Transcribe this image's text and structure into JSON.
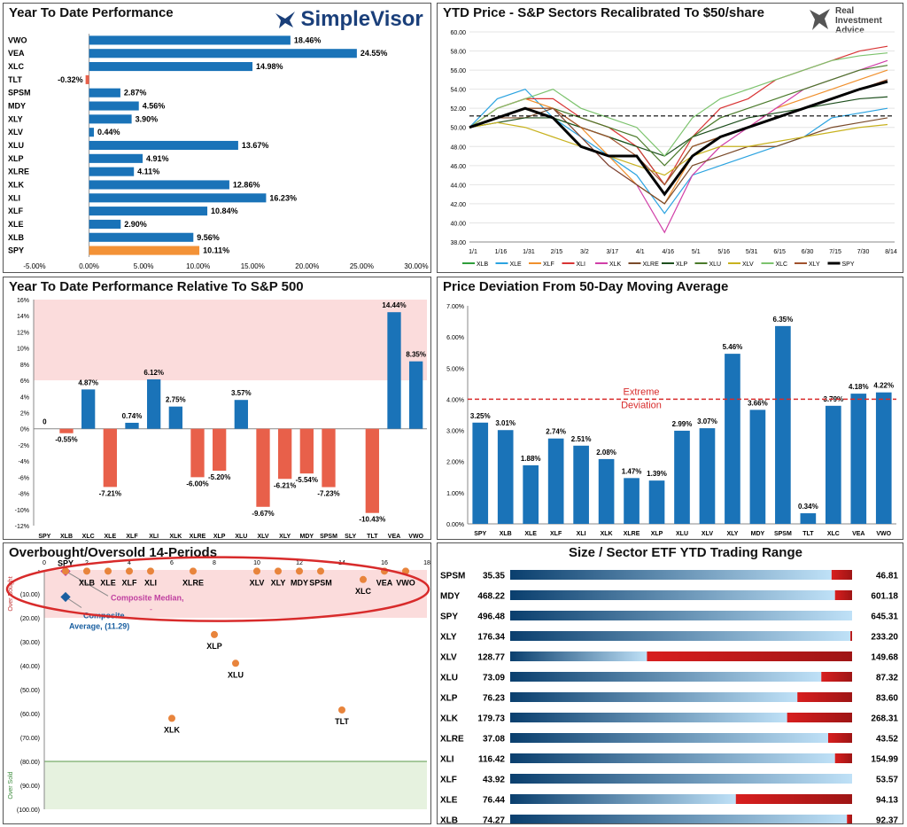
{
  "panels": {
    "ytd": {
      "title": "Year To Date Performance",
      "logo": "SimpleVisor",
      "chart_data": {
        "type": "bar",
        "orientation": "horizontal",
        "categories": [
          "VWO",
          "VEA",
          "XLC",
          "TLT",
          "SPSM",
          "MDY",
          "XLY",
          "XLV",
          "XLU",
          "XLP",
          "XLRE",
          "XLK",
          "XLI",
          "XLF",
          "XLE",
          "XLB",
          "SPY"
        ],
        "values": [
          18.46,
          24.55,
          14.98,
          -0.32,
          2.87,
          4.56,
          3.9,
          0.44,
          13.67,
          4.91,
          4.11,
          12.86,
          16.23,
          10.84,
          2.9,
          9.56,
          10.11
        ],
        "labels": [
          "18.46%",
          "24.55%",
          "14.98%",
          "-0.32%",
          "2.87%",
          "4.56%",
          "3.90%",
          "0.44%",
          "13.67%",
          "4.91%",
          "4.11%",
          "12.86%",
          "16.23%",
          "10.84%",
          "2.90%",
          "9.56%",
          "10.11%"
        ],
        "xticks": [
          "-5.00%",
          "0.00%",
          "5.00%",
          "10.00%",
          "15.00%",
          "20.00%",
          "25.00%",
          "30.00%"
        ],
        "xlim": [
          -5,
          30
        ],
        "colors": {
          "positive": "#1a73b8",
          "negative": "#e8604a",
          "highlight": "#f39237"
        },
        "highlight": "SPY"
      }
    },
    "price": {
      "title": "YTD Price - S&P Sectors Recalibrated To $50/share",
      "logo_line1": "Real",
      "logo_line2": "Investment",
      "logo_line3": "Advice",
      "chart_data": {
        "type": "line",
        "x": [
          "1/1",
          "1/16",
          "1/31",
          "2/15",
          "3/2",
          "3/17",
          "4/1",
          "4/16",
          "5/1",
          "5/16",
          "5/31",
          "6/15",
          "6/30",
          "7/15",
          "7/30",
          "8/14"
        ],
        "ylim": [
          38,
          60
        ],
        "yticks": [
          "38.00",
          "40.00",
          "42.00",
          "44.00",
          "46.00",
          "48.00",
          "50.00",
          "52.00",
          "54.00",
          "56.00",
          "58.00",
          "60.00"
        ],
        "reference_line": 51.2,
        "series": [
          {
            "name": "XLB",
            "color": "#2e9e3a",
            "values": [
              50,
              51,
              52,
              51,
              50,
              49,
              48,
              44,
              48,
              49,
              50,
              51,
              52,
              53,
              54,
              54.8
            ]
          },
          {
            "name": "XLE",
            "color": "#2ba3e0",
            "values": [
              50,
              53,
              54,
              51,
              49,
              47,
              45,
              41,
              45,
              46,
              47,
              48,
              49,
              51,
              51.5,
              52
            ]
          },
          {
            "name": "XLF",
            "color": "#f0902d",
            "values": [
              50,
              52,
              53,
              52,
              50,
              47,
              44,
              42,
              47,
              49,
              50,
              52,
              53,
              54,
              55,
              56
            ]
          },
          {
            "name": "XLI",
            "color": "#d83434",
            "values": [
              50,
              52,
              53,
              53,
              51,
              50,
              48,
              44,
              49,
              52,
              53,
              55,
              56,
              57,
              58,
              58.5
            ]
          },
          {
            "name": "XLK",
            "color": "#d13fa8",
            "values": [
              50,
              51,
              52,
              52,
              49,
              46,
              44,
              39,
              45,
              48,
              50,
              52,
              54,
              55,
              56,
              57
            ]
          },
          {
            "name": "XLRE",
            "color": "#7a4a2a",
            "values": [
              50,
              51,
              51,
              52,
              49,
              46,
              44,
              42,
              46,
              47,
              48,
              48,
              49,
              50,
              50.5,
              51
            ]
          },
          {
            "name": "XLP",
            "color": "#1d4f1d",
            "values": [
              50,
              50.5,
              51,
              51,
              50,
              49,
              48,
              47,
              49,
              50,
              51,
              51.5,
              52,
              52.5,
              53,
              53.2
            ]
          },
          {
            "name": "XLU",
            "color": "#4a7a2a",
            "values": [
              50,
              51,
              52,
              52,
              51,
              50,
              49,
              46,
              49,
              51,
              52,
              53,
              54,
              55,
              56,
              56.5
            ]
          },
          {
            "name": "XLV",
            "color": "#c8b21f",
            "values": [
              50,
              50.5,
              50,
              49,
              48,
              47,
              46,
              45,
              47,
              48,
              48,
              48.5,
              49,
              49.5,
              50,
              50.3
            ]
          },
          {
            "name": "XLC",
            "color": "#7cc36d",
            "values": [
              50,
              52,
              53,
              54,
              52,
              51,
              50,
              47,
              51,
              53,
              54,
              55,
              56,
              57,
              57.5,
              57.8
            ]
          },
          {
            "name": "XLY",
            "color": "#a0522d",
            "values": [
              50,
              51,
              52,
              52,
              50,
              49,
              47,
              44,
              48,
              49,
              50,
              51,
              52,
              53,
              54,
              55
            ]
          },
          {
            "name": "SPY",
            "color": "#000000",
            "bold": true,
            "values": [
              50,
              51,
              52,
              51,
              48,
              47,
              47,
              43,
              47,
              49,
              50,
              51,
              52,
              53,
              54,
              54.8
            ]
          }
        ]
      }
    },
    "rel": {
      "title": "Year To Date Performance Relative To S&P 500",
      "chart_data": {
        "type": "bar",
        "categories": [
          "SPY",
          "XLB",
          "XLC",
          "XLE",
          "XLF",
          "XLI",
          "XLK",
          "XLRE",
          "XLP",
          "XLU",
          "XLV",
          "XLY",
          "MDY",
          "SPSM",
          "SLY",
          "TLT",
          "VEA",
          "VWO"
        ],
        "values": [
          0,
          -0.55,
          4.87,
          -7.21,
          0.74,
          6.12,
          2.75,
          -6.0,
          -5.2,
          3.57,
          -9.67,
          -6.21,
          -5.54,
          -7.23,
          null,
          -10.43,
          14.44,
          8.35
        ],
        "labels": [
          "0",
          "-0.55%",
          "4.87%",
          "-7.21%",
          "0.74%",
          "6.12%",
          "2.75%",
          "-6.00%",
          "-5.20%",
          "3.57%",
          "-9.67%",
          "-6.21%",
          "-5.54%",
          "-7.23%",
          "",
          "-10.43%",
          "14.44%",
          "8.35%"
        ],
        "yticks": [
          "-12%",
          "-10%",
          "-8%",
          "-6%",
          "-4%",
          "-2%",
          "0%",
          "2%",
          "4%",
          "6%",
          "8%",
          "10%",
          "12%",
          "14%",
          "16%"
        ],
        "ylim": [
          -12,
          16
        ],
        "shade_above": 6,
        "colors": {
          "positive": "#1a73b8",
          "negative": "#e8604a",
          "shade": "#fbdcdc"
        }
      }
    },
    "dev": {
      "title": "Price Deviation From 50-Day Moving Average",
      "threshold_label_line1": "Extreme",
      "threshold_label_line2": "Deviation",
      "chart_data": {
        "type": "bar",
        "categories": [
          "SPY",
          "XLB",
          "XLE",
          "XLF",
          "XLI",
          "XLK",
          "XLRE",
          "XLP",
          "XLU",
          "XLV",
          "XLY",
          "MDY",
          "SPSM",
          "TLT",
          "XLC",
          "VEA",
          "VWO"
        ],
        "values": [
          3.25,
          3.01,
          1.88,
          2.74,
          2.51,
          2.08,
          1.47,
          1.39,
          2.99,
          3.07,
          5.46,
          3.66,
          6.35,
          0.34,
          3.79,
          4.18,
          4.22
        ],
        "labels": [
          "3.25%",
          "3.01%",
          "1.88%",
          "2.74%",
          "2.51%",
          "2.08%",
          "1.47%",
          "1.39%",
          "2.99%",
          "3.07%",
          "5.46%",
          "3.66%",
          "6.35%",
          "0.34%",
          "3.79%",
          "4.18%",
          "4.22%"
        ],
        "yticks": [
          "0.00%",
          "1.00%",
          "2.00%",
          "3.00%",
          "4.00%",
          "5.00%",
          "6.00%",
          "7.00%"
        ],
        "ylim": [
          0,
          7
        ],
        "threshold": 4.0,
        "colors": {
          "bar": "#1a73b8",
          "threshold": "#d82b2b"
        }
      }
    },
    "ob": {
      "title": "Overbought/Oversold 14-Periods",
      "side_top": "Over Bought",
      "side_bottom": "Over Sold",
      "median_label": "Composite Median,",
      "median_dash": "-",
      "avg_label_line1": "Composite",
      "avg_label_line2": "Average,  (11.29)",
      "chart_data": {
        "type": "scatter",
        "xticks": [
          "0",
          "2",
          "4",
          "6",
          "8",
          "10",
          "12",
          "14",
          "16",
          "18"
        ],
        "xlim": [
          0,
          18
        ],
        "yticks": [
          "-",
          "(10.00)",
          "(20.00)",
          "(30.00)",
          "(40.00)",
          "(50.00)",
          "(60.00)",
          "(70.00)",
          "(80.00)",
          "(90.00)",
          "(100.00)"
        ],
        "ylim": [
          0,
          -100
        ],
        "points": [
          {
            "label": "SPY",
            "x": 1,
            "y": -0.5,
            "pos": "above"
          },
          {
            "label": "XLB",
            "x": 2,
            "y": -0.5,
            "pos": "below"
          },
          {
            "label": "XLE",
            "x": 3,
            "y": -0.5,
            "pos": "below"
          },
          {
            "label": "XLF",
            "x": 4,
            "y": -0.5,
            "pos": "below"
          },
          {
            "label": "XLI",
            "x": 5,
            "y": -0.5,
            "pos": "below"
          },
          {
            "label": "XLRE",
            "x": 7,
            "y": -0.5,
            "pos": "below"
          },
          {
            "label": "XLV",
            "x": 10,
            "y": -0.5,
            "pos": "below"
          },
          {
            "label": "XLY",
            "x": 11,
            "y": -0.5,
            "pos": "below"
          },
          {
            "label": "MDY",
            "x": 12,
            "y": -0.5,
            "pos": "below"
          },
          {
            "label": "SPSM",
            "x": 13,
            "y": -0.5,
            "pos": "below"
          },
          {
            "label": "XLC",
            "x": 15,
            "y": -4,
            "pos": "below"
          },
          {
            "label": "VEA",
            "x": 16,
            "y": -0.5,
            "pos": "below"
          },
          {
            "label": "VWO",
            "x": 17,
            "y": -0.5,
            "pos": "below"
          },
          {
            "label": "XLP",
            "x": 8,
            "y": -27,
            "pos": "below"
          },
          {
            "label": "XLU",
            "x": 9,
            "y": -39,
            "pos": "below"
          },
          {
            "label": "XLK",
            "x": 6,
            "y": -62,
            "pos": "below"
          },
          {
            "label": "TLT",
            "x": 14,
            "y": -58.5,
            "pos": "below"
          }
        ],
        "composite_median": {
          "x": 1,
          "y": -0.5
        },
        "composite_average": {
          "x": 1,
          "y": -11.29
        },
        "colors": {
          "point": "#e8843c",
          "top_zone": "#fbdcdc",
          "bottom_zone": "#e6f2df",
          "ellipse": "#d82b2b",
          "median": "#c040a0",
          "average": "#1a5fa0"
        }
      }
    },
    "range": {
      "title": "Size / Sector ETF YTD Trading Range",
      "chart_data": {
        "type": "bar",
        "subtype": "range",
        "rows": [
          {
            "name": "SPSM",
            "low": "35.35",
            "high": "46.81",
            "pos": 0.94
          },
          {
            "name": "MDY",
            "low": "468.22",
            "high": "601.18",
            "pos": 0.95
          },
          {
            "name": "SPY",
            "low": "496.48",
            "high": "645.31",
            "pos": 1.0
          },
          {
            "name": "XLY",
            "low": "176.34",
            "high": "233.20",
            "pos": 0.995
          },
          {
            "name": "XLV",
            "low": "128.77",
            "high": "149.68",
            "pos": 0.4
          },
          {
            "name": "XLU",
            "low": "73.09",
            "high": "87.32",
            "pos": 0.91
          },
          {
            "name": "XLP",
            "low": "76.23",
            "high": "83.60",
            "pos": 0.84
          },
          {
            "name": "XLK",
            "low": "179.73",
            "high": "268.31",
            "pos": 0.81
          },
          {
            "name": "XLRE",
            "low": "37.08",
            "high": "43.52",
            "pos": 0.93
          },
          {
            "name": "XLI",
            "low": "116.42",
            "high": "154.99",
            "pos": 0.95
          },
          {
            "name": "XLF",
            "low": "43.92",
            "high": "53.57",
            "pos": 1.0
          },
          {
            "name": "XLE",
            "low": "76.44",
            "high": "94.13",
            "pos": 0.66
          },
          {
            "name": "XLB",
            "low": "74.27",
            "high": "92.37",
            "pos": 0.985
          }
        ],
        "colors": {
          "dark": "#0a3f6e",
          "light": "#bfe1f7",
          "red": "#d81e1e",
          "darkred": "#9e1515"
        }
      }
    }
  }
}
